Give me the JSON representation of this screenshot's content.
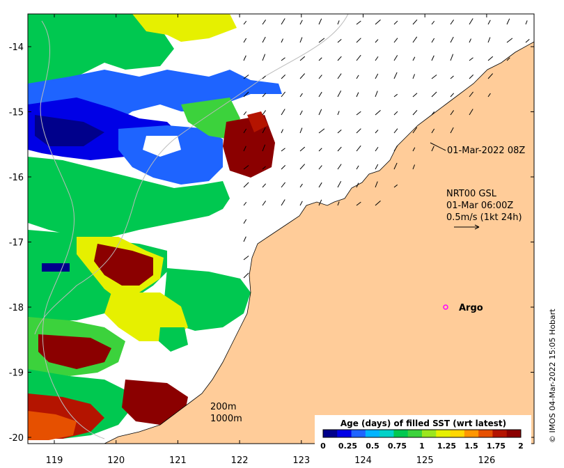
{
  "axes": {
    "x_ticks": [
      "119",
      "120",
      "121",
      "122",
      "123",
      "124",
      "125",
      "126"
    ],
    "y_ticks": [
      "-14",
      "-15",
      "-16",
      "-17",
      "-18",
      "-19",
      "-20"
    ]
  },
  "annotations": {
    "pass_time": "01-Mar-2022 08Z",
    "current_line1": "NRT00 GSL",
    "current_line2": "01-Mar 06:00Z",
    "current_line3": "0.5m/s (1kt 24h)",
    "argo_label": "Argo",
    "depth_200": "200m",
    "depth_1000": "1000m",
    "credit": "© IMOS 04-Mar-2022 15:05 Hobart"
  },
  "colorbar": {
    "title": "Age (days) of filled SST (wrt latest)",
    "ticks": [
      "0",
      "0.25",
      "0.5",
      "0.75",
      "1",
      "1.25",
      "1.5",
      "1.75",
      "2"
    ],
    "colors": [
      "#00008b",
      "#0000e6",
      "#1e64ff",
      "#00b4ff",
      "#00d2c8",
      "#00c850",
      "#3cd23c",
      "#9be61e",
      "#e6f000",
      "#ffd700",
      "#ff9600",
      "#e65000",
      "#b41400",
      "#8b0000"
    ]
  },
  "colors": {
    "land": "#ffcc99",
    "ocean_blank": "#ffffff",
    "argo_marker": "#ff00ff"
  }
}
